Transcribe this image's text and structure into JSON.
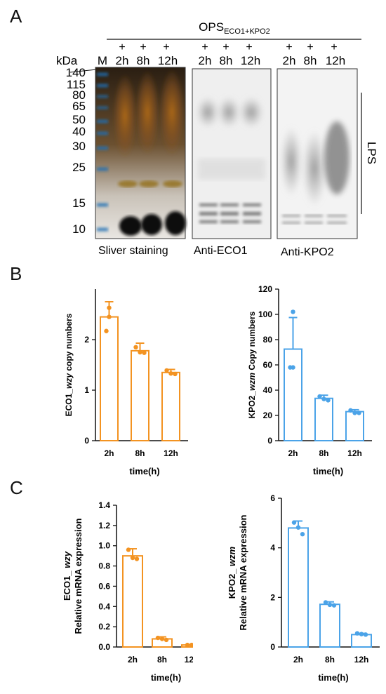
{
  "panelA": {
    "letter": "A",
    "header_main": "OPS",
    "header_sub": "ECO1+KPO2",
    "plus": "+",
    "lane_times": [
      "2h",
      "8h",
      "12h"
    ],
    "kda_label": "kDa",
    "marker_label": "M",
    "markers": [
      "140",
      "115",
      "80",
      "65",
      "50",
      "40",
      "30",
      "25",
      "15",
      "10"
    ],
    "blot_labels": [
      "Sliver staining",
      "Anti-ECO1",
      "Anti-KPO2"
    ],
    "lps_label": "LPS"
  },
  "panelB": {
    "letter": "B"
  },
  "panelC": {
    "letter": "C"
  },
  "chart_data": [
    {
      "type": "bar",
      "id": "B-left",
      "categories": [
        "2h",
        "8h",
        "12h"
      ],
      "values": [
        2.45,
        1.78,
        1.35
      ],
      "errors": [
        0.3,
        0.15,
        0.06
      ],
      "points": [
        [
          2.63,
          2.45,
          2.17
        ],
        [
          1.85,
          1.75,
          1.74
        ],
        [
          1.39,
          1.33,
          1.32
        ]
      ],
      "ylabel_parts": [
        "ECO1_",
        "wzy",
        " copy numbers"
      ],
      "xlabel": "time(h)",
      "ylim": [
        0,
        3
      ],
      "yticks": [
        "0",
        "1",
        "2"
      ],
      "ytick_values": [
        0,
        1,
        2
      ],
      "color": "#f39321"
    },
    {
      "type": "bar",
      "id": "B-right",
      "categories": [
        "2h",
        "8h",
        "12h"
      ],
      "values": [
        72.5,
        33.5,
        23
      ],
      "errors": [
        25,
        2.5,
        1.5
      ],
      "points": [
        [
          102,
          58,
          58
        ],
        [
          35,
          33,
          32
        ],
        [
          24,
          22,
          22
        ]
      ],
      "ylabel_parts": [
        "KPO2_",
        "wzm",
        " Copy numbers"
      ],
      "xlabel": "time(h)",
      "ylim": [
        0,
        120
      ],
      "yticks": [
        "0",
        "20",
        "40",
        "60",
        "80",
        "100",
        "120"
      ],
      "ytick_values": [
        0,
        20,
        40,
        60,
        80,
        100,
        120
      ],
      "color": "#4ba3e8"
    },
    {
      "type": "bar",
      "id": "C-left",
      "categories": [
        "2h",
        "8h",
        "12h"
      ],
      "values": [
        0.9,
        0.08,
        0.02
      ],
      "errors": [
        0.07,
        0.02,
        0.005
      ],
      "points": [
        [
          0.96,
          0.88,
          0.87
        ],
        [
          0.09,
          0.08,
          0.07
        ],
        [
          0.02,
          0.02,
          0.02
        ]
      ],
      "ylabel_parts": [
        "ECO1_ ",
        "wzy"
      ],
      "ylabel2": "Relative mRNA expression",
      "xlabel": "time(h)",
      "ylim": [
        0,
        1.4
      ],
      "yticks": [
        "0.0",
        "0.2",
        "0.4",
        "0.6",
        "0.8",
        "1.0",
        "1.2",
        "1.4"
      ],
      "ytick_values": [
        0,
        0.2,
        0.4,
        0.6,
        0.8,
        1.0,
        1.2,
        1.4
      ],
      "color": "#f39321"
    },
    {
      "type": "bar",
      "id": "C-right",
      "categories": [
        "2h",
        "8h",
        "12h"
      ],
      "values": [
        4.8,
        1.72,
        0.5
      ],
      "errors": [
        0.28,
        0.1,
        0.05
      ],
      "points": [
        [
          5.02,
          4.82,
          4.55
        ],
        [
          1.8,
          1.7,
          1.68
        ],
        [
          0.55,
          0.52,
          0.5
        ]
      ],
      "ylabel_parts": [
        "KPO2_ ",
        "wzm"
      ],
      "ylabel2": "Relative mRNA expression",
      "xlabel": "time(h)",
      "ylim": [
        0,
        6
      ],
      "yticks": [
        "0",
        "2",
        "4",
        "6"
      ],
      "ytick_values": [
        0,
        2,
        4,
        6
      ],
      "color": "#4ba3e8"
    }
  ]
}
